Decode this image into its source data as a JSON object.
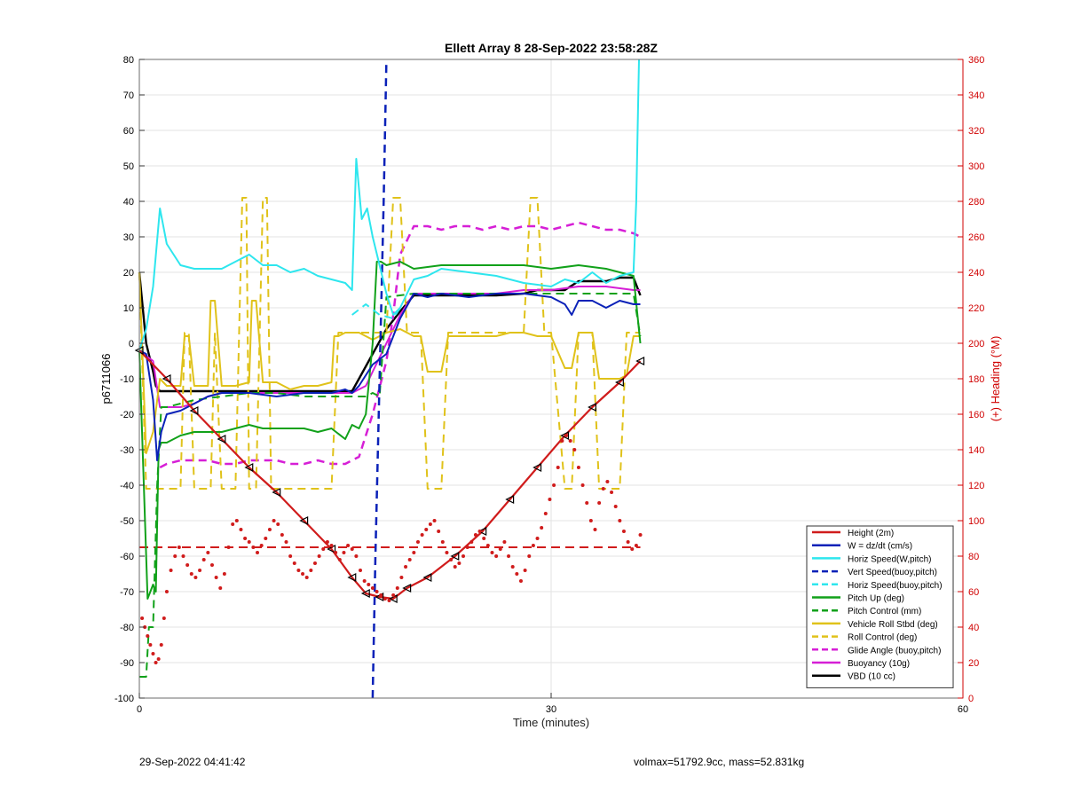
{
  "footer": {
    "left_text": "29-Sep-2022 04:41:42",
    "right_text": "volmax=51792.9cc, mass=52.831kg"
  },
  "chart_data": {
    "type": "line",
    "title": "Ellett Array 8 28-Sep-2022 23:58:28Z",
    "xlabel": "Time (minutes)",
    "ylabel": "p6711066",
    "y2label": "(+) Heading (°M)",
    "xlim": [
      0,
      60
    ],
    "ylim": [
      -100,
      80
    ],
    "y2lim": [
      0,
      360
    ],
    "xticks": [
      0,
      30,
      60
    ],
    "yticks": [
      -100,
      -90,
      -80,
      -70,
      -60,
      -50,
      -40,
      -30,
      -20,
      -10,
      0,
      10,
      20,
      30,
      40,
      50,
      60,
      70,
      80
    ],
    "y2ticks": [
      0,
      20,
      40,
      60,
      80,
      100,
      120,
      140,
      160,
      180,
      200,
      220,
      240,
      260,
      280,
      300,
      320,
      340,
      360
    ],
    "grid": true,
    "legend_position": "bottom-right",
    "colors": {
      "axis_left": "#000000",
      "axis_right": "#d00000",
      "grid": "#e3e3e3"
    },
    "series": [
      {
        "name": "Height (2m)",
        "color": "#d01c1c",
        "dash": "solid",
        "width": 2.2,
        "markers": "triangle",
        "x": [
          0,
          2,
          4,
          6,
          8,
          10,
          12,
          14,
          15.5,
          16.5,
          17.5,
          18.5,
          19.5,
          21,
          23,
          25,
          27,
          29,
          31,
          33,
          35,
          36.5
        ],
        "y": [
          -2,
          -10,
          -19,
          -27,
          -35,
          -42,
          -50,
          -58,
          -66,
          -70.5,
          -71.5,
          -72,
          -69,
          -66,
          -60,
          -53,
          -44,
          -35,
          -26,
          -18,
          -11,
          -5
        ]
      },
      {
        "name": "W = dz/dt (cm/s)",
        "color": "#0a21b8",
        "dash": "solid",
        "width": 2,
        "x": [
          0,
          0.5,
          1,
          1.3,
          1.6,
          2,
          3,
          4,
          5,
          6,
          8,
          10,
          12,
          14,
          15,
          15.5,
          16,
          17,
          18,
          19,
          20,
          21,
          22,
          24,
          26,
          28,
          30,
          31,
          31.5,
          32,
          33,
          34,
          35,
          36,
          36.5
        ],
        "y": [
          -2,
          -3,
          -16,
          -33,
          -25,
          -20,
          -19,
          -17,
          -15,
          -14,
          -14,
          -15,
          -14,
          -14,
          -13,
          -14,
          -12,
          -6,
          -3,
          7,
          14,
          13,
          14,
          13,
          14,
          14,
          13,
          11,
          8,
          12,
          12,
          10,
          12,
          11,
          11
        ]
      },
      {
        "name": "Horiz Speed(W,pitch)",
        "color": "#2ee6ee",
        "dash": "solid",
        "width": 2,
        "x": [
          0,
          0.5,
          1,
          1.5,
          2,
          3,
          4,
          6,
          7,
          8,
          9,
          10,
          11,
          12,
          13,
          14,
          15,
          15.5,
          15.8,
          16.2,
          16.6,
          17,
          17.5,
          18,
          18.5,
          19,
          20,
          21,
          22,
          24,
          26,
          28,
          30,
          31,
          32,
          33,
          34,
          35,
          36,
          36.2,
          36.4
        ],
        "y": [
          -2,
          4,
          16,
          38,
          28,
          22,
          21,
          21,
          23,
          25,
          22,
          22,
          20,
          21,
          19,
          18,
          17,
          15,
          52,
          35,
          38,
          30,
          22,
          14,
          8,
          10,
          18,
          19,
          21,
          20,
          19,
          17,
          16,
          18,
          17,
          20,
          17,
          19,
          20,
          40,
          80
        ]
      },
      {
        "name": "Vert Speed(buoy,pitch)",
        "color": "#0a21b8",
        "dash": "dashed",
        "width": 2.5,
        "x": [
          17,
          17.2,
          17.5,
          17.8,
          18
        ],
        "y": [
          -100,
          -60,
          -10,
          40,
          80
        ]
      },
      {
        "name": "Horiz Speed(buoy,pitch)",
        "color": "#2ee6ee",
        "dash": "dashed",
        "width": 2,
        "x": [
          15.5,
          16.5,
          17.5,
          18.5,
          19
        ],
        "y": [
          8,
          11,
          8,
          7,
          10
        ]
      },
      {
        "name": "Pitch Up (deg)",
        "color": "#11a11a",
        "dash": "solid",
        "width": 2,
        "x": [
          0,
          0.6,
          1,
          1.2,
          1.4,
          1.6,
          2,
          3,
          4,
          5,
          6,
          7,
          8,
          9,
          10,
          11,
          12,
          13,
          14,
          15,
          15.5,
          16,
          16.5,
          17,
          17.3,
          17.6,
          18,
          19,
          20,
          22,
          24,
          26,
          28,
          30,
          32,
          34,
          35,
          36,
          36.5
        ],
        "y": [
          -2,
          -72,
          -68,
          -70,
          -30,
          -28,
          -28,
          -26,
          -25,
          -25,
          -25,
          -24,
          -23,
          -24,
          -24,
          -24,
          -24,
          -25,
          -24,
          -27,
          -23,
          -24,
          -20,
          0,
          23,
          23,
          22,
          23,
          21,
          22,
          22,
          22,
          22,
          21,
          22,
          21,
          20,
          19,
          0
        ]
      },
      {
        "name": "Pitch Control (mm)",
        "color": "#11a11a",
        "dash": "dashed",
        "width": 2,
        "x": [
          0,
          0.3,
          0.5,
          0.7,
          1,
          1.3,
          1.6,
          2,
          4,
          6,
          8,
          10,
          12,
          14,
          15.5,
          16.5,
          17,
          17.5,
          18,
          20,
          22,
          24,
          26,
          28,
          30,
          32,
          34,
          36,
          36.5
        ],
        "y": [
          -94,
          -94,
          -94,
          -80,
          -80,
          -40,
          -18,
          -18,
          -16,
          -15,
          -14,
          -14,
          -15,
          -15,
          -15,
          -15,
          -14,
          -15,
          13,
          14,
          14,
          14,
          14,
          14,
          14,
          14,
          14,
          14,
          2
        ]
      },
      {
        "name": "Vehicle Roll Stbd (deg)",
        "color": "#e0c21a",
        "dash": "solid",
        "width": 2,
        "x": [
          0,
          0.5,
          1,
          1.5,
          2,
          3,
          3.3,
          3.6,
          4,
          5,
          5.2,
          5.5,
          6,
          7,
          8,
          8.2,
          8.5,
          9,
          10,
          11,
          12,
          13,
          14,
          14.2,
          14.5,
          15,
          16,
          17,
          18,
          19,
          20,
          20.5,
          21,
          22,
          22.5,
          23,
          25,
          26,
          27,
          28,
          29,
          29.5,
          30,
          31,
          31.5,
          32,
          33,
          33.5,
          34,
          35,
          35.5,
          36,
          36.5
        ],
        "y": [
          20,
          -31,
          -25,
          -10,
          -12,
          -12,
          2,
          2,
          -12,
          -12,
          12,
          12,
          -12,
          -12,
          -11,
          12,
          12,
          -11,
          -11,
          -13,
          -12,
          -12,
          -11,
          2,
          2,
          3,
          3,
          1,
          3,
          4,
          2,
          2,
          -8,
          -8,
          2,
          2,
          2,
          2,
          3,
          3,
          2,
          2,
          2,
          -7,
          -7,
          3,
          3,
          -10,
          -10,
          -10,
          -9,
          2,
          2
        ]
      },
      {
        "name": "Roll Control (deg)",
        "color": "#e0c21a",
        "dash": "dashed",
        "width": 2,
        "x": [
          0,
          0.5,
          1,
          1.6,
          2,
          3,
          3.3,
          3.6,
          4,
          5,
          5.2,
          5.5,
          6,
          7,
          7.5,
          7.8,
          8,
          8.5,
          9,
          9.3,
          9.6,
          10,
          11,
          12,
          13,
          13.5,
          14,
          14.5,
          15,
          16,
          17,
          18,
          18.5,
          19,
          19.5,
          20,
          20.5,
          21,
          22,
          22.5,
          23,
          25,
          26,
          27,
          28,
          28.5,
          29,
          29.5,
          30,
          31,
          31.5,
          32,
          33,
          33.5,
          34,
          35,
          35.5,
          36,
          36.5
        ],
        "y": [
          20,
          -41,
          -41,
          -41,
          -41,
          -41,
          3,
          3,
          -41,
          -41,
          -41,
          3,
          -41,
          -41,
          41,
          41,
          -41,
          -41,
          41,
          41,
          -41,
          -41,
          -41,
          -41,
          -41,
          -41,
          -41,
          3,
          3,
          3,
          3,
          3,
          41,
          41,
          3,
          3,
          3,
          -41,
          -41,
          3,
          3,
          3,
          3,
          3,
          3,
          41,
          41,
          3,
          3,
          -41,
          -41,
          3,
          3,
          -41,
          -41,
          -41,
          3,
          3,
          3
        ]
      },
      {
        "name": "Glide Angle (buoy,pitch)",
        "color": "#d61fd6",
        "dash": "dashed",
        "width": 2.5,
        "x": [
          1.5,
          2,
          3,
          4,
          5,
          6,
          7,
          8,
          9,
          10,
          11,
          12,
          13,
          14,
          15,
          15.5,
          16,
          17,
          18,
          18.5,
          19,
          20,
          21,
          22,
          23,
          24,
          25,
          26,
          27,
          28,
          29,
          30,
          31,
          32,
          33,
          34,
          35,
          36,
          36.5
        ],
        "y": [
          -35,
          -34,
          -33,
          -33,
          -33,
          -34,
          -34,
          -33,
          -33,
          -33,
          -34,
          -34,
          -33,
          -34,
          -34,
          -33,
          -32,
          -20,
          -5,
          8,
          25,
          33,
          33,
          32,
          33,
          33,
          32,
          33,
          32,
          33,
          33,
          32,
          33,
          34,
          33,
          32,
          32,
          31,
          30
        ]
      },
      {
        "name": "Buoyancy (10g)",
        "color": "#d61fd6",
        "dash": "solid",
        "width": 2,
        "x": [
          0,
          1,
          1.5,
          2,
          3,
          4,
          5,
          6,
          8,
          10,
          12,
          14,
          15.5,
          16.5,
          17,
          17.5,
          18,
          19,
          20,
          22,
          24,
          26,
          28,
          30,
          32,
          34,
          36,
          36.5
        ],
        "y": [
          -2,
          -5,
          -18,
          -18,
          -18,
          -17,
          -15,
          -14,
          -14,
          -14,
          -14,
          -14,
          -14,
          -12,
          -8,
          -4,
          0,
          8,
          14,
          14,
          14,
          14,
          15,
          15,
          16,
          16,
          15,
          15
        ]
      },
      {
        "name": "VBD (10 cc)",
        "color": "#000000",
        "dash": "solid",
        "width": 2.4,
        "x": [
          0,
          0.5,
          1,
          1.2,
          1.5,
          2,
          4,
          6,
          8,
          10,
          12,
          14,
          15.5,
          16,
          17,
          18,
          19,
          20,
          21,
          22,
          24,
          26,
          28,
          29,
          30,
          31,
          32,
          33,
          34,
          35,
          36,
          36.5
        ],
        "y": [
          20,
          0,
          -8,
          -12,
          -13.5,
          -13.5,
          -13.5,
          -13.5,
          -13.5,
          -13.5,
          -13.5,
          -13.5,
          -13.5,
          -10,
          -3,
          4,
          9,
          13.5,
          13.5,
          13.5,
          13.5,
          13.5,
          14,
          15,
          15,
          15,
          17.5,
          17.5,
          17.5,
          18.5,
          18.5,
          13.5
        ]
      }
    ],
    "heading_series": {
      "type": "scatter",
      "color": "#d01c1c",
      "axis": "right",
      "x": [
        0.2,
        0.4,
        0.6,
        0.8,
        1,
        1.2,
        1.4,
        1.6,
        1.8,
        2,
        2.3,
        2.6,
        2.9,
        3.2,
        3.5,
        3.8,
        4.1,
        4.4,
        4.7,
        5,
        5.3,
        5.6,
        5.9,
        6.2,
        6.5,
        6.8,
        7.1,
        7.4,
        7.7,
        8,
        8.3,
        8.6,
        8.9,
        9.2,
        9.5,
        9.8,
        10.1,
        10.4,
        10.7,
        11,
        11.3,
        11.6,
        11.9,
        12.2,
        12.5,
        12.8,
        13.1,
        13.4,
        13.7,
        14,
        14.3,
        14.6,
        14.9,
        15.2,
        15.5,
        15.8,
        16.1,
        16.4,
        16.7,
        17,
        17.3,
        17.6,
        17.9,
        18.2,
        18.5,
        18.8,
        19.1,
        19.4,
        19.7,
        20,
        20.3,
        20.6,
        20.9,
        21.2,
        21.5,
        21.8,
        22.1,
        22.4,
        22.7,
        23,
        23.3,
        23.6,
        23.9,
        24.2,
        24.5,
        24.8,
        25.1,
        25.4,
        25.7,
        26,
        26.3,
        26.6,
        26.9,
        27.2,
        27.5,
        27.8,
        28.1,
        28.4,
        28.7,
        29,
        29.3,
        29.6,
        29.9,
        30.2,
        30.5,
        30.8,
        31.1,
        31.4,
        31.7,
        32,
        32.3,
        32.6,
        32.9,
        33.2,
        33.5,
        33.8,
        34.1,
        34.4,
        34.7,
        35,
        35.3,
        35.6,
        35.9,
        36.2,
        36.5
      ],
      "y": [
        45,
        40,
        35,
        30,
        25,
        20,
        22,
        30,
        45,
        60,
        72,
        80,
        85,
        80,
        75,
        70,
        68,
        72,
        78,
        82,
        75,
        68,
        62,
        70,
        85,
        98,
        100,
        95,
        90,
        88,
        85,
        82,
        86,
        90,
        95,
        100,
        98,
        92,
        88,
        80,
        76,
        72,
        70,
        68,
        72,
        76,
        80,
        84,
        88,
        86,
        82,
        78,
        82,
        86,
        84,
        80,
        72,
        66,
        64,
        62,
        60,
        58,
        56,
        55,
        58,
        62,
        68,
        74,
        78,
        82,
        88,
        92,
        95,
        98,
        100,
        94,
        88,
        82,
        78,
        74,
        76,
        80,
        85,
        88,
        92,
        94,
        90,
        86,
        82,
        80,
        84,
        88,
        80,
        74,
        70,
        66,
        72,
        80,
        86,
        90,
        96,
        104,
        112,
        120,
        130,
        145,
        148,
        145,
        140,
        130,
        120,
        110,
        100,
        95,
        110,
        118,
        122,
        116,
        108,
        100,
        94,
        88,
        84,
        86,
        92
      ]
    },
    "heading_reference": {
      "value": 85,
      "color": "#d01c1c",
      "dash": "dashed",
      "axis": "right",
      "xrange": [
        0,
        36.5
      ]
    }
  }
}
